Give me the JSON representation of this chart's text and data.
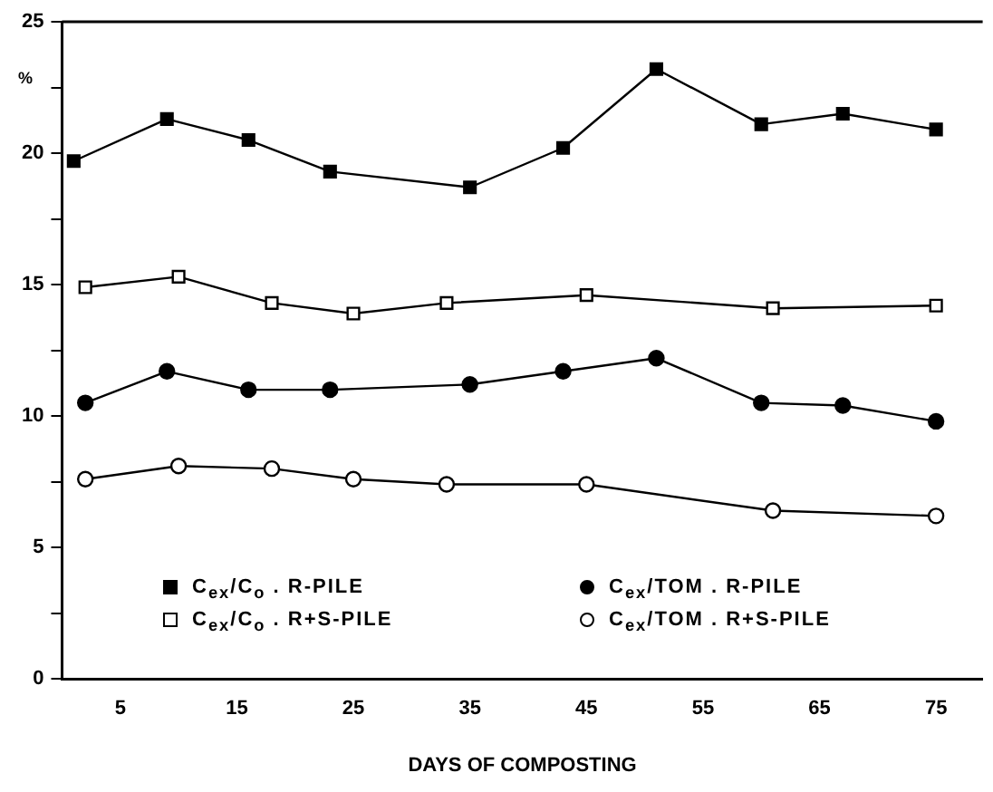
{
  "chart_data": {
    "type": "line",
    "xlabel": "DAYS OF COMPOSTING",
    "ylabel": "%",
    "xlim": [
      0,
      79
    ],
    "xticks": [
      5,
      15,
      25,
      35,
      45,
      55,
      65,
      75
    ],
    "ylim": [
      0,
      25
    ],
    "yticks": [
      0,
      {
        "value": 2.5,
        "label": null
      },
      5,
      {
        "value": 7.5,
        "label": null
      },
      10,
      {
        "value": 12.5,
        "label": null
      },
      15,
      {
        "value": 17.5,
        "label": null
      },
      20,
      {
        "value": 22.5,
        "label": null
      },
      25
    ],
    "legend": "bottom",
    "grid": false,
    "line_style": "solid",
    "series": [
      {
        "name": "C$_{ex}$/C$_{o}$ . R-PILE",
        "color": "#000000",
        "marker": "square",
        "x": [
          1,
          9,
          16,
          23,
          35,
          43,
          51,
          60,
          67,
          75
        ],
        "values": [
          19.7,
          21.3,
          20.5,
          19.3,
          18.7,
          20.2,
          23.2,
          21.1,
          21.5,
          20.9
        ]
      },
      {
        "name": "C$_{ex}$/C$_{o}$ . R+S-PILE",
        "color": "#000000",
        "colors": [
          "#ffffff",
          "#ffffff",
          "#ffffff",
          "#ffffff",
          "#ffffff",
          "#ffffff",
          "#ffffff",
          "#ffffff"
        ],
        "marker": "square",
        "x": [
          2,
          10,
          18,
          25,
          33,
          45,
          61,
          75
        ],
        "values": [
          14.9,
          15.3,
          14.3,
          13.9,
          14.3,
          14.6,
          14.1,
          14.2
        ]
      },
      {
        "name": "C$_{ex}$/TOM . R-PILE",
        "color": "#000000",
        "marker": "circle",
        "x": [
          2,
          9,
          16,
          23,
          35,
          43,
          51,
          60,
          67,
          75
        ],
        "values": [
          10.5,
          11.7,
          11.0,
          11.0,
          11.2,
          11.7,
          12.2,
          10.5,
          10.4,
          9.8
        ]
      },
      {
        "name": "C$_{ex}$/TOM . R+S-PILE",
        "color": "#000000",
        "colors": [
          "#ffffff",
          "#ffffff",
          "#ffffff",
          "#ffffff",
          "#ffffff",
          "#ffffff",
          "#ffffff",
          "#ffffff"
        ],
        "marker": "circle",
        "x": [
          2,
          10,
          18,
          25,
          33,
          45,
          61,
          75
        ],
        "values": [
          7.6,
          8.1,
          8.0,
          7.6,
          7.4,
          7.4,
          6.4,
          6.2
        ]
      }
    ]
  }
}
